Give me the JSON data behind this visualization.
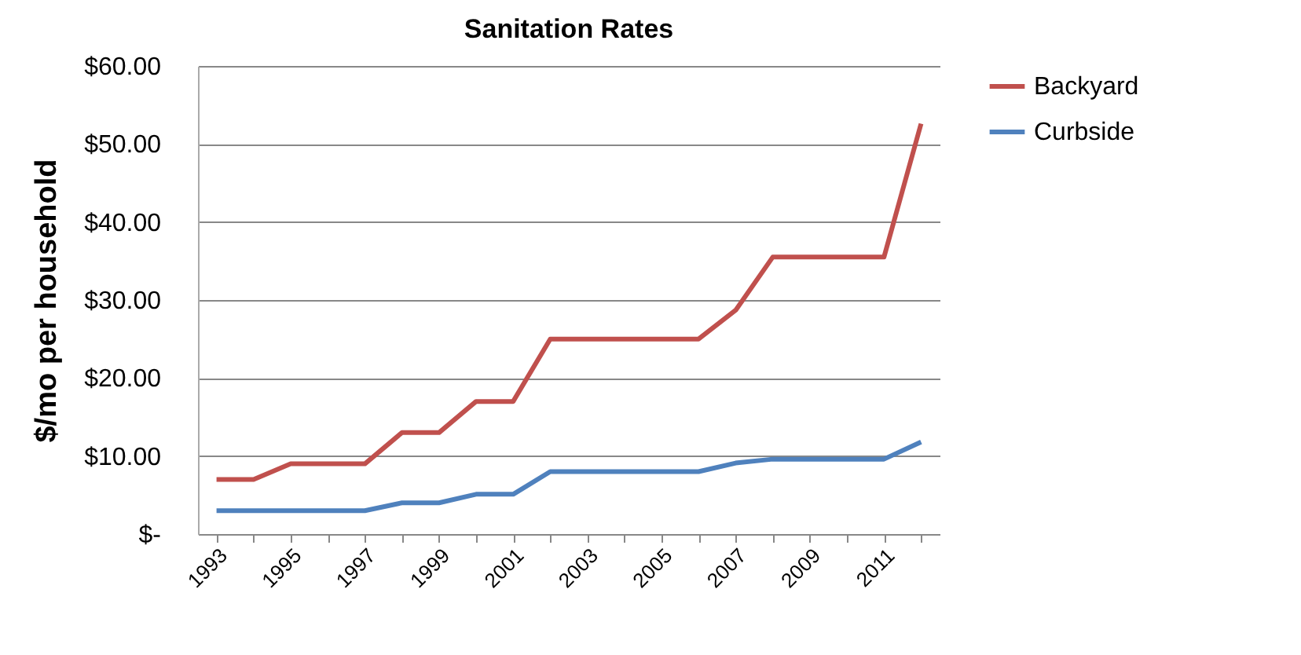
{
  "chart_data": {
    "type": "line",
    "title": "Sanitation Rates",
    "ylabel": "$/mo per household",
    "categories": [
      "1993",
      null,
      "1995",
      null,
      "1997",
      null,
      "1999",
      null,
      "2001",
      null,
      "2003",
      null,
      "2005",
      null,
      "2007",
      null,
      "2009",
      null,
      "2011",
      null
    ],
    "series": [
      {
        "name": "Backyard",
        "color": "#c0504d",
        "values": [
          7,
          7,
          9,
          9,
          9,
          13,
          13,
          17,
          17,
          25,
          25,
          25,
          25,
          25,
          28.7,
          35.5,
          35.5,
          35.5,
          35.5,
          52.6
        ]
      },
      {
        "name": "Curbside",
        "color": "#4f81bd",
        "values": [
          3,
          3,
          3,
          3,
          3,
          4,
          4,
          5.1,
          5.1,
          8,
          8,
          8,
          8,
          8,
          9.1,
          9.6,
          9.6,
          9.6,
          9.6,
          11.8
        ]
      }
    ],
    "ylim": [
      0,
      60
    ],
    "yticks": [
      {
        "value": 0,
        "label": "$-"
      },
      {
        "value": 10,
        "label": "$10.00"
      },
      {
        "value": 20,
        "label": "$20.00"
      },
      {
        "value": 30,
        "label": "$30.00"
      },
      {
        "value": 40,
        "label": "$40.00"
      },
      {
        "value": 50,
        "label": "$50.00"
      },
      {
        "value": 60,
        "label": "$60.00"
      }
    ],
    "grid": "y",
    "legend": "right",
    "marker": "none",
    "line_style": "solid"
  }
}
